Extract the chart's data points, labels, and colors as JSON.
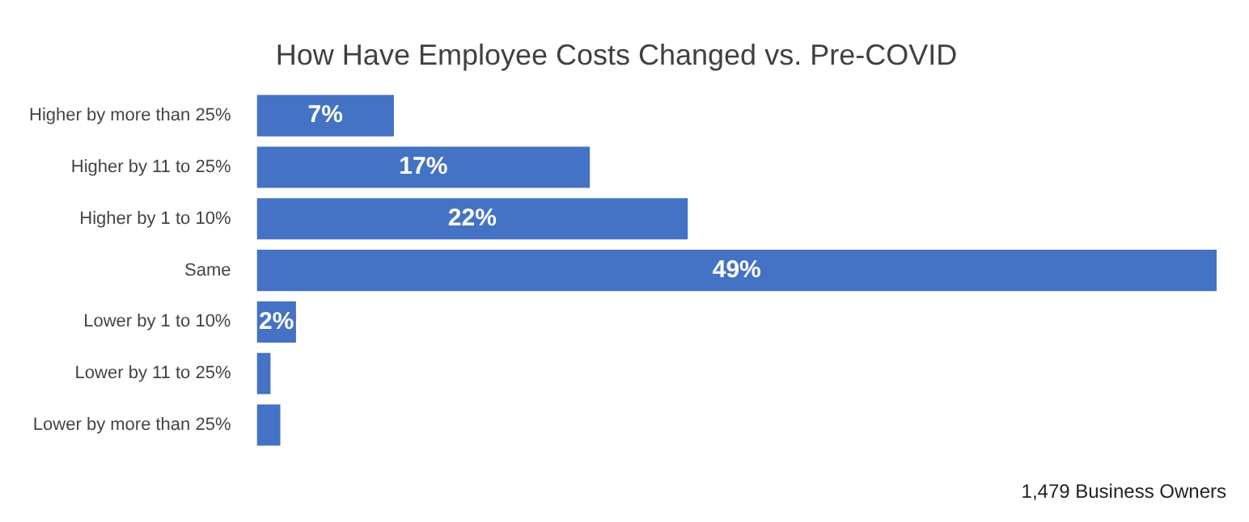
{
  "chart_data": {
    "type": "bar",
    "title": "How Have Employee Costs Changed vs. Pre-COVID",
    "categories": [
      "Higher by more than 25%",
      "Higher by 11 to 25%",
      "Higher by 1 to 10%",
      "Same",
      "Lower by 1 to 10%",
      "Lower by 11 to 25%",
      "Lower by more than 25%"
    ],
    "values": [
      7,
      17,
      22,
      49,
      2,
      0.7,
      1.2
    ],
    "value_labels": [
      "7%",
      "17%",
      "22%",
      "49%",
      "2%",
      null,
      null
    ],
    "orientation": "horizontal",
    "color": "#4472c4",
    "tick_labels": "y",
    "legend": false,
    "annotations": [
      "1,479 Business Owners"
    ]
  }
}
